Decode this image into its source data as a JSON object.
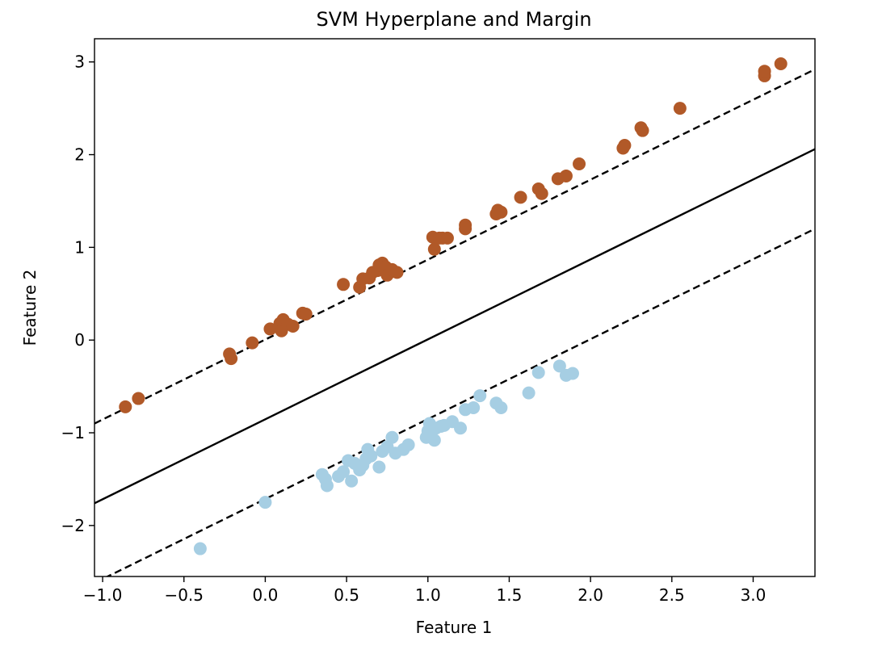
{
  "chart_data": {
    "type": "scatter",
    "title": "SVM Hyperplane and Margin",
    "xlabel": "Feature 1",
    "ylabel": "Feature 2",
    "xlim": [
      -1.05,
      3.38
    ],
    "ylim": [
      -2.55,
      3.25
    ],
    "xticks": [
      -1.0,
      -0.5,
      0.0,
      0.5,
      1.0,
      1.5,
      2.0,
      2.5,
      3.0
    ],
    "xtick_labels": [
      "−1.0",
      "−0.5",
      "0.0",
      "0.5",
      "1.0",
      "1.5",
      "2.0",
      "2.5",
      "3.0"
    ],
    "yticks": [
      -2,
      -1,
      0,
      1,
      2,
      3
    ],
    "ytick_labels": [
      "−2",
      "−1",
      "0",
      "1",
      "2",
      "3"
    ],
    "grid": false,
    "colors": {
      "class_0": "#a6cee3",
      "class_1": "#b15928",
      "line": "#000000"
    },
    "lines": [
      {
        "role": "decision_boundary",
        "style": "solid",
        "x": [
          -1.05,
          3.38
        ],
        "y": [
          -1.76,
          2.06
        ]
      },
      {
        "role": "upper_margin",
        "style": "dashed",
        "x": [
          -1.05,
          3.38
        ],
        "y": [
          -0.9,
          2.92
        ]
      },
      {
        "role": "lower_margin",
        "style": "dashed",
        "x": [
          -1.05,
          3.38
        ],
        "y": [
          -2.62,
          1.2
        ]
      }
    ],
    "series": [
      {
        "class": 1,
        "color": "#b15928",
        "points": [
          [
            -0.86,
            -0.72
          ],
          [
            -0.78,
            -0.63
          ],
          [
            -0.22,
            -0.15
          ],
          [
            -0.21,
            -0.2
          ],
          [
            -0.08,
            -0.03
          ],
          [
            0.03,
            0.12
          ],
          [
            0.09,
            0.18
          ],
          [
            0.1,
            0.1
          ],
          [
            0.11,
            0.22
          ],
          [
            0.14,
            0.17
          ],
          [
            0.17,
            0.15
          ],
          [
            0.23,
            0.29
          ],
          [
            0.25,
            0.28
          ],
          [
            0.48,
            0.6
          ],
          [
            0.58,
            0.57
          ],
          [
            0.6,
            0.66
          ],
          [
            0.64,
            0.67
          ],
          [
            0.66,
            0.73
          ],
          [
            0.69,
            0.75
          ],
          [
            0.7,
            0.81
          ],
          [
            0.72,
            0.83
          ],
          [
            0.74,
            0.79
          ],
          [
            0.75,
            0.7
          ],
          [
            0.78,
            0.76
          ],
          [
            0.81,
            0.73
          ],
          [
            1.03,
            1.11
          ],
          [
            1.04,
            0.98
          ],
          [
            1.07,
            1.1
          ],
          [
            1.09,
            1.1
          ],
          [
            1.12,
            1.1
          ],
          [
            1.23,
            1.2
          ],
          [
            1.23,
            1.24
          ],
          [
            1.42,
            1.36
          ],
          [
            1.43,
            1.4
          ],
          [
            1.45,
            1.38
          ],
          [
            1.57,
            1.54
          ],
          [
            1.68,
            1.63
          ],
          [
            1.7,
            1.58
          ],
          [
            1.8,
            1.74
          ],
          [
            1.85,
            1.77
          ],
          [
            1.93,
            1.9
          ],
          [
            2.2,
            2.07
          ],
          [
            2.21,
            2.1
          ],
          [
            2.31,
            2.29
          ],
          [
            2.32,
            2.26
          ],
          [
            2.55,
            2.5
          ],
          [
            3.07,
            2.85
          ],
          [
            3.07,
            2.9
          ],
          [
            3.17,
            2.98
          ]
        ]
      },
      {
        "class": 0,
        "color": "#a6cee3",
        "points": [
          [
            -0.4,
            -2.25
          ],
          [
            0.0,
            -1.75
          ],
          [
            0.35,
            -1.45
          ],
          [
            0.37,
            -1.5
          ],
          [
            0.38,
            -1.57
          ],
          [
            0.45,
            -1.47
          ],
          [
            0.48,
            -1.42
          ],
          [
            0.51,
            -1.3
          ],
          [
            0.53,
            -1.52
          ],
          [
            0.55,
            -1.33
          ],
          [
            0.58,
            -1.4
          ],
          [
            0.6,
            -1.35
          ],
          [
            0.62,
            -1.28
          ],
          [
            0.63,
            -1.18
          ],
          [
            0.65,
            -1.25
          ],
          [
            0.7,
            -1.37
          ],
          [
            0.72,
            -1.2
          ],
          [
            0.75,
            -1.15
          ],
          [
            0.78,
            -1.05
          ],
          [
            0.8,
            -1.22
          ],
          [
            0.85,
            -1.18
          ],
          [
            0.88,
            -1.13
          ],
          [
            0.99,
            -1.05
          ],
          [
            1.0,
            -0.98
          ],
          [
            1.01,
            -0.9
          ],
          [
            1.02,
            -1.03
          ],
          [
            1.04,
            -1.08
          ],
          [
            1.05,
            -0.95
          ],
          [
            1.08,
            -0.93
          ],
          [
            1.1,
            -0.92
          ],
          [
            1.15,
            -0.88
          ],
          [
            1.2,
            -0.95
          ],
          [
            1.23,
            -0.75
          ],
          [
            1.28,
            -0.73
          ],
          [
            1.32,
            -0.6
          ],
          [
            1.42,
            -0.68
          ],
          [
            1.45,
            -0.73
          ],
          [
            1.62,
            -0.57
          ],
          [
            1.68,
            -0.35
          ],
          [
            1.81,
            -0.28
          ],
          [
            1.85,
            -0.38
          ],
          [
            1.89,
            -0.36
          ]
        ]
      }
    ]
  }
}
